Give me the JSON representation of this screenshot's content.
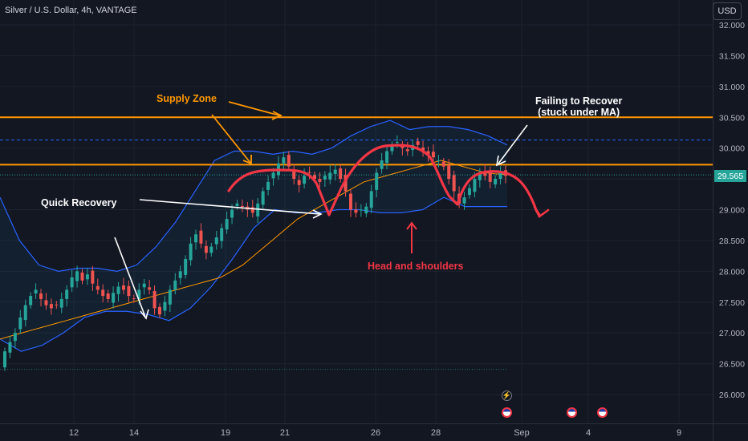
{
  "header": {
    "symbol_title": "Silver / U.S. Dollar, 4h, VANTAGE",
    "currency_button": "USD"
  },
  "last_price": "29.565",
  "annotations": {
    "supply_zone": "Supply Zone",
    "failing_line1": "Failing to Recover",
    "failing_line2": "(stuck under MA)",
    "quick_recovery": "Quick Recovery",
    "head_and_shoulders": "Head and shoulders"
  },
  "colors": {
    "background": "#131722",
    "up_candle": "#26a69a",
    "down_candle": "#ef5350",
    "bollinger": "#2962ff",
    "moving_average": "#ff9800",
    "supply_lines": "#ff9800",
    "head_shoulders_curve": "#f23645"
  },
  "chart_data": {
    "type": "candlestick",
    "title": "Silver / U.S. Dollar, 4h, VANTAGE",
    "y_ticks": [
      "32.000",
      "31.500",
      "31.000",
      "30.500",
      "30.000",
      "29.500",
      "29.000",
      "28.500",
      "28.000",
      "27.500",
      "27.000",
      "26.500",
      "26.000"
    ],
    "x_ticks": [
      "12",
      "14",
      "19",
      "21",
      "26",
      "28",
      "Sep",
      "4",
      "9"
    ],
    "ylim": [
      25.6,
      32.2
    ],
    "supply_zone": {
      "upper": 30.5,
      "lower": 29.73
    },
    "dashed_level": 30.13,
    "last_price": 29.565,
    "series_close": [
      26.7,
      26.85,
      27.0,
      27.25,
      27.45,
      27.6,
      27.7,
      27.55,
      27.45,
      27.4,
      27.45,
      27.55,
      27.7,
      27.9,
      28.0,
      27.85,
      27.95,
      27.8,
      27.7,
      27.6,
      27.55,
      27.65,
      27.75,
      27.7,
      27.6,
      27.55,
      27.7,
      27.8,
      27.7,
      27.4,
      27.3,
      27.5,
      27.7,
      27.85,
      28.0,
      28.2,
      28.45,
      28.6,
      28.45,
      28.3,
      28.4,
      28.55,
      28.7,
      28.85,
      29.0,
      29.1,
      29.05,
      29.0,
      28.95,
      29.1,
      29.3,
      29.45,
      29.6,
      29.75,
      29.85,
      29.7,
      29.5,
      29.4,
      29.55,
      29.6,
      29.5,
      29.45,
      29.55,
      29.6,
      29.65,
      29.5,
      29.3,
      29.0,
      28.95,
      29.0,
      29.05,
      29.3,
      29.6,
      29.8,
      29.95,
      30.05,
      30.1,
      30.0,
      29.95,
      30.05,
      30.05,
      29.95,
      29.9,
      29.85,
      29.8,
      29.7,
      29.5,
      29.3,
      29.1,
      29.2,
      29.35,
      29.5,
      29.6,
      29.55,
      29.45,
      29.5,
      29.6,
      29.55
    ],
    "moving_average": [
      26.9,
      26.95,
      27.0,
      27.05,
      27.1,
      27.15,
      27.2,
      27.25,
      27.3,
      27.35,
      27.4,
      27.45,
      27.5,
      27.55,
      27.6,
      27.65,
      27.7,
      27.75,
      27.8,
      27.85,
      27.9,
      28.0,
      28.1,
      28.25,
      28.4,
      28.55,
      28.7,
      28.85,
      28.95,
      29.05,
      29.15,
      29.25,
      29.35,
      29.45,
      29.5,
      29.55,
      29.6,
      29.65,
      29.7,
      29.75,
      29.8,
      29.75,
      29.7,
      29.65,
      29.6,
      29.58,
      29.57
    ],
    "bollinger_upper": [
      29.2,
      28.5,
      28.1,
      28.0,
      28.05,
      28.05,
      28.0,
      28.1,
      28.4,
      28.8,
      29.3,
      29.8,
      29.95,
      29.95,
      29.9,
      29.95,
      29.9,
      30.0,
      30.2,
      30.35,
      30.45,
      30.3,
      30.35,
      30.35,
      30.3,
      30.2,
      30.05
    ],
    "bollinger_lower": [
      26.9,
      26.7,
      26.8,
      27.0,
      27.25,
      27.35,
      27.35,
      27.3,
      27.2,
      27.4,
      27.75,
      28.2,
      28.7,
      29.0,
      28.95,
      28.95,
      29.0,
      29.0,
      28.95,
      28.95,
      29.0,
      29.2,
      29.05,
      29.05,
      29.05
    ]
  }
}
